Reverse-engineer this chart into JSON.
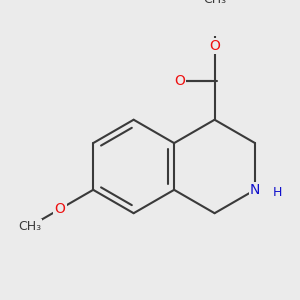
{
  "bg_color": "#ebebeb",
  "bond_color": "#3a3a3a",
  "bond_width": 1.5,
  "atom_colors": {
    "O": "#ee1111",
    "N": "#1111cc",
    "C": "#3a3a3a"
  },
  "font_size_atom": 10,
  "font_size_methyl": 9
}
